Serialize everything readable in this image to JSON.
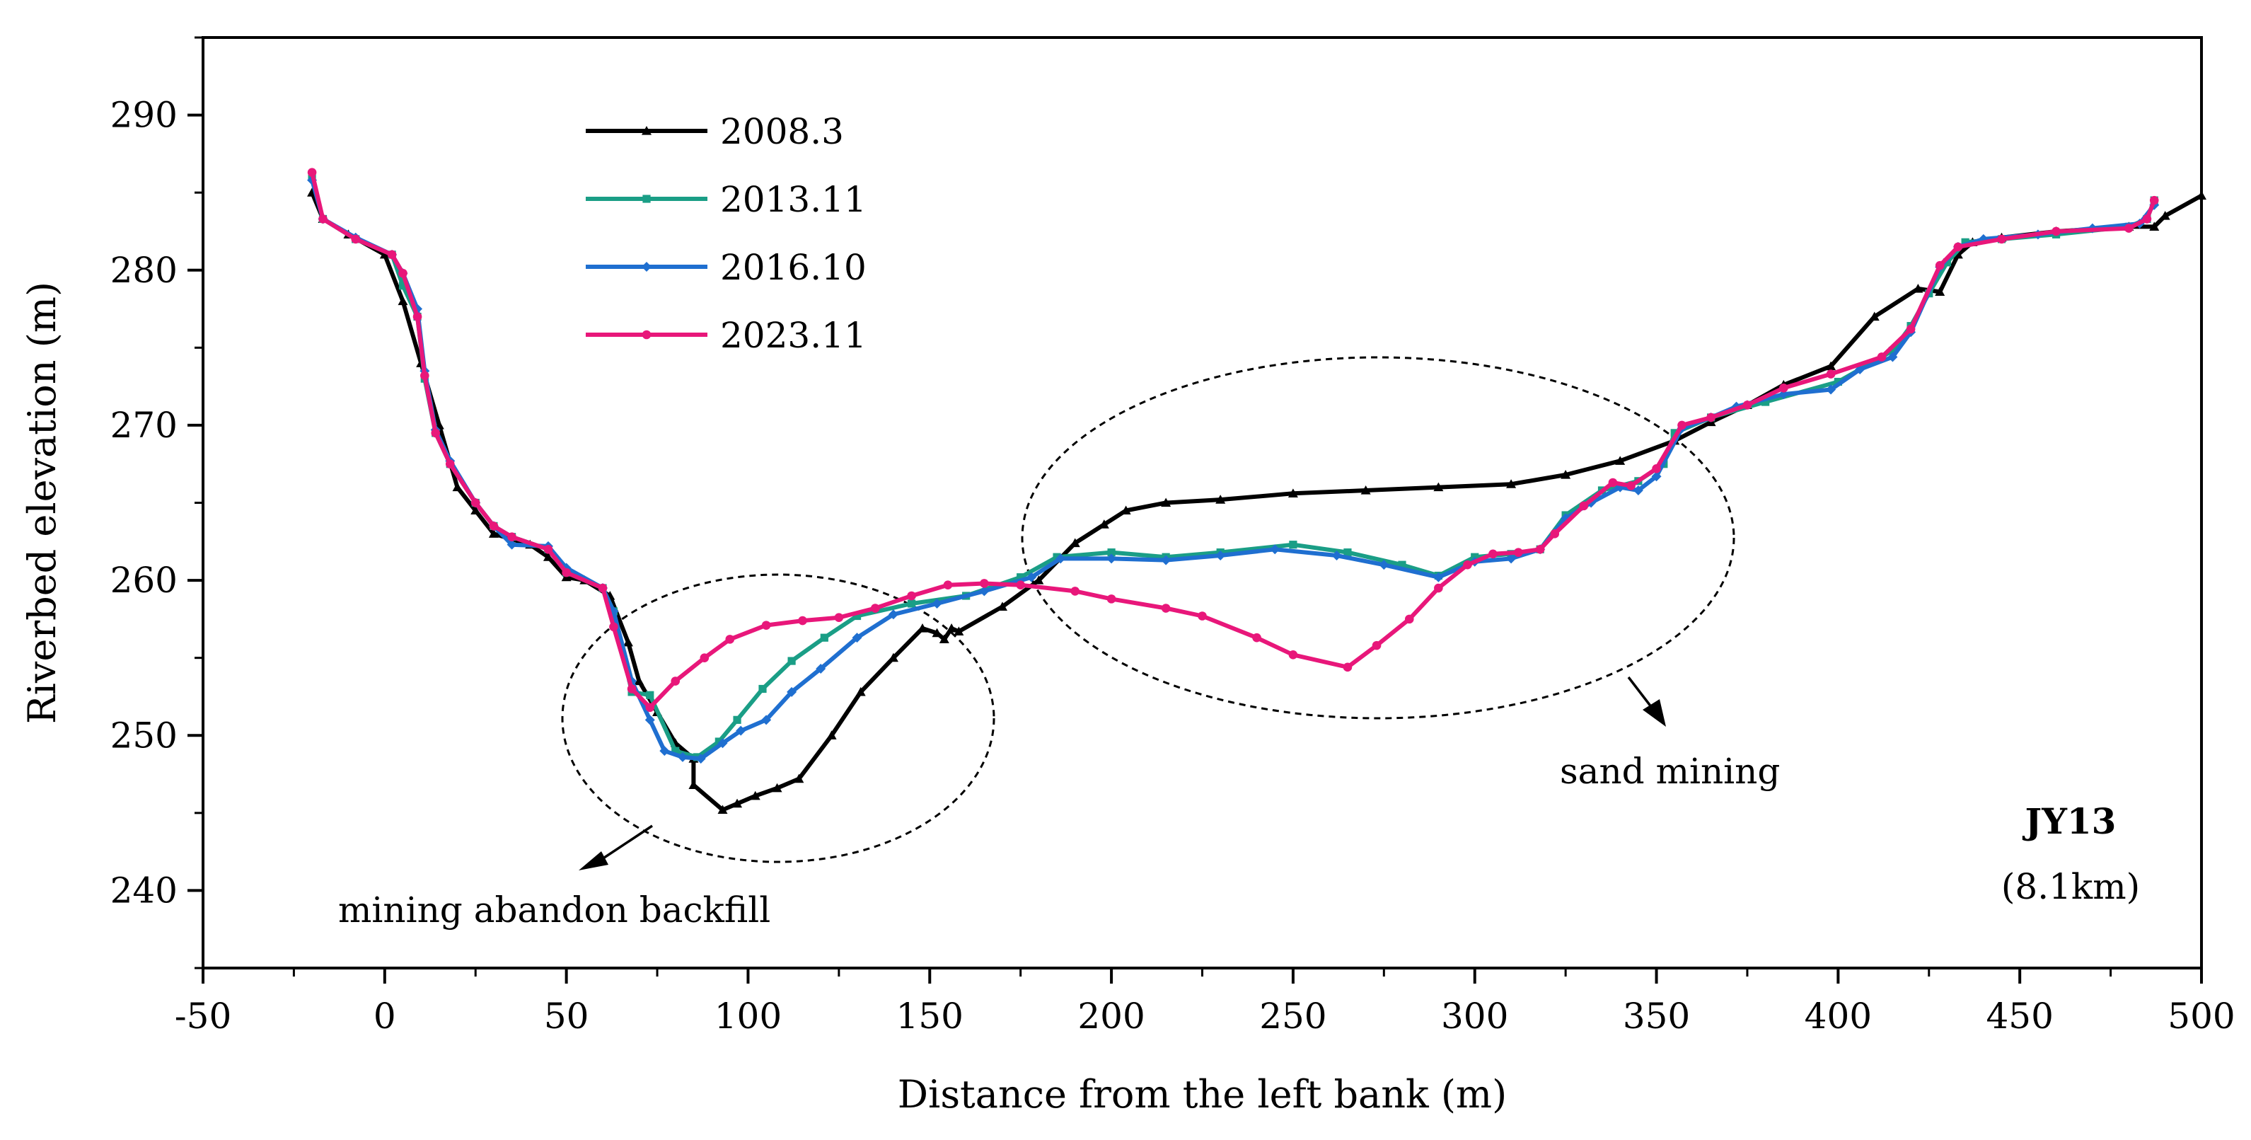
{
  "chart_data": {
    "type": "line",
    "title": "",
    "xlabel": "Distance from the left bank (m)",
    "ylabel": "Riverbed elevation (m)",
    "xlim": [
      -50,
      500
    ],
    "ylim": [
      235,
      295
    ],
    "xticks": [
      -50,
      0,
      50,
      100,
      150,
      200,
      250,
      300,
      350,
      400,
      450,
      500
    ],
    "yticks": [
      240,
      250,
      260,
      270,
      280,
      290
    ],
    "legend_position": "top-left",
    "series": [
      {
        "name": "2008.3",
        "color": "#000000",
        "marker": "triangle",
        "points": [
          [
            -20,
            285
          ],
          [
            -17,
            283.3
          ],
          [
            -10,
            282.3
          ],
          [
            0,
            281
          ],
          [
            5,
            278
          ],
          [
            10,
            274
          ],
          [
            15,
            270
          ],
          [
            20,
            266
          ],
          [
            25,
            264.5
          ],
          [
            30,
            263
          ],
          [
            40,
            262.3
          ],
          [
            45,
            261.5
          ],
          [
            50,
            260.2
          ],
          [
            55,
            260
          ],
          [
            62,
            259
          ],
          [
            67,
            256
          ],
          [
            70,
            253.5
          ],
          [
            75,
            251.5
          ],
          [
            80,
            249.5
          ],
          [
            85,
            248.5
          ],
          [
            85,
            246.8
          ],
          [
            93,
            245.2
          ],
          [
            97,
            245.6
          ],
          [
            102,
            246.1
          ],
          [
            108,
            246.6
          ],
          [
            114,
            247.2
          ],
          [
            123,
            250
          ],
          [
            131,
            252.8
          ],
          [
            140,
            255
          ],
          [
            148,
            256.9
          ],
          [
            152,
            256.6
          ],
          [
            154,
            256.2
          ],
          [
            156,
            256.9
          ],
          [
            158,
            256.7
          ],
          [
            170,
            258.3
          ],
          [
            180,
            260
          ],
          [
            190,
            262.4
          ],
          [
            198,
            263.6
          ],
          [
            204,
            264.5
          ],
          [
            215,
            265
          ],
          [
            230,
            265.2
          ],
          [
            250,
            265.6
          ],
          [
            270,
            265.8
          ],
          [
            290,
            266
          ],
          [
            310,
            266.2
          ],
          [
            325,
            266.8
          ],
          [
            340,
            267.7
          ],
          [
            355,
            269
          ],
          [
            365,
            270.2
          ],
          [
            375,
            271.3
          ],
          [
            385,
            272.6
          ],
          [
            398,
            273.8
          ],
          [
            410,
            277
          ],
          [
            422,
            278.8
          ],
          [
            428,
            278.6
          ],
          [
            433,
            281
          ],
          [
            437,
            281.8
          ],
          [
            445,
            282.1
          ],
          [
            460,
            282.5
          ],
          [
            480,
            282.8
          ],
          [
            487,
            282.8
          ],
          [
            490,
            283.5
          ],
          [
            500,
            284.8
          ]
        ]
      },
      {
        "name": "2013.11",
        "color": "#1a9e86",
        "marker": "square",
        "points": [
          [
            -20,
            286
          ],
          [
            -17,
            283.3
          ],
          [
            -8,
            282
          ],
          [
            2,
            281
          ],
          [
            5,
            279
          ],
          [
            9,
            277
          ],
          [
            11,
            273
          ],
          [
            14,
            269.5
          ],
          [
            18,
            267.5
          ],
          [
            25,
            265
          ],
          [
            30,
            263.5
          ],
          [
            35,
            262.8
          ],
          [
            45,
            262
          ],
          [
            50,
            260.5
          ],
          [
            60,
            259.5
          ],
          [
            63,
            258
          ],
          [
            68,
            252.8
          ],
          [
            73,
            252.6
          ],
          [
            80,
            249
          ],
          [
            86,
            248.6
          ],
          [
            92,
            249.6
          ],
          [
            97,
            251
          ],
          [
            104,
            253
          ],
          [
            112,
            254.8
          ],
          [
            121,
            256.3
          ],
          [
            130,
            257.7
          ],
          [
            145,
            258.5
          ],
          [
            160,
            259
          ],
          [
            175,
            260.2
          ],
          [
            185,
            261.5
          ],
          [
            200,
            261.8
          ],
          [
            215,
            261.5
          ],
          [
            230,
            261.8
          ],
          [
            250,
            262.3
          ],
          [
            265,
            261.8
          ],
          [
            280,
            261
          ],
          [
            290,
            260.3
          ],
          [
            300,
            261.5
          ],
          [
            310,
            261.7
          ],
          [
            318,
            262
          ],
          [
            325,
            264.2
          ],
          [
            335,
            265.8
          ],
          [
            345,
            266.4
          ],
          [
            352,
            267.5
          ],
          [
            355,
            269.5
          ],
          [
            365,
            270.5
          ],
          [
            380,
            271.5
          ],
          [
            400,
            272.8
          ],
          [
            415,
            274.8
          ],
          [
            420,
            276.4
          ],
          [
            425,
            278.5
          ],
          [
            430,
            280.5
          ],
          [
            435,
            281.8
          ],
          [
            445,
            282
          ],
          [
            460,
            282.3
          ],
          [
            480,
            282.8
          ],
          [
            485,
            283.3
          ],
          [
            487,
            284.5
          ]
        ]
      },
      {
        "name": "2016.10",
        "color": "#1f6fd0",
        "marker": "diamond",
        "points": [
          [
            -20,
            285.8
          ],
          [
            -17,
            283.3
          ],
          [
            -8,
            282.1
          ],
          [
            2,
            281
          ],
          [
            5,
            279.8
          ],
          [
            9,
            277.5
          ],
          [
            11,
            273.5
          ],
          [
            14,
            269.7
          ],
          [
            18,
            267.7
          ],
          [
            25,
            265
          ],
          [
            30,
            263.5
          ],
          [
            35,
            262.3
          ],
          [
            45,
            262.2
          ],
          [
            50,
            260.8
          ],
          [
            60,
            259.5
          ],
          [
            63,
            258
          ],
          [
            68,
            253.5
          ],
          [
            73,
            251
          ],
          [
            77,
            249
          ],
          [
            82,
            248.6
          ],
          [
            87,
            248.5
          ],
          [
            93,
            249.5
          ],
          [
            98,
            250.3
          ],
          [
            105,
            251
          ],
          [
            112,
            252.8
          ],
          [
            120,
            254.3
          ],
          [
            130,
            256.3
          ],
          [
            140,
            257.8
          ],
          [
            152,
            258.5
          ],
          [
            165,
            259.3
          ],
          [
            178,
            260.2
          ],
          [
            186,
            261.4
          ],
          [
            200,
            261.4
          ],
          [
            215,
            261.3
          ],
          [
            230,
            261.6
          ],
          [
            245,
            262
          ],
          [
            262,
            261.6
          ],
          [
            275,
            261
          ],
          [
            290,
            260.2
          ],
          [
            300,
            261.2
          ],
          [
            310,
            261.4
          ],
          [
            318,
            262
          ],
          [
            325,
            264
          ],
          [
            332,
            265
          ],
          [
            340,
            266
          ],
          [
            345,
            265.8
          ],
          [
            350,
            266.7
          ],
          [
            357,
            269.8
          ],
          [
            365,
            270.5
          ],
          [
            372,
            271.2
          ],
          [
            385,
            272
          ],
          [
            398,
            272.3
          ],
          [
            406,
            273.6
          ],
          [
            415,
            274.4
          ],
          [
            420,
            276
          ],
          [
            428,
            280.2
          ],
          [
            433,
            281.5
          ],
          [
            440,
            282
          ],
          [
            455,
            282.3
          ],
          [
            470,
            282.7
          ],
          [
            483,
            283
          ],
          [
            487,
            284.2
          ]
        ]
      },
      {
        "name": "2023.11",
        "color": "#e8177a",
        "marker": "circle",
        "points": [
          [
            -20,
            286.3
          ],
          [
            -17,
            283.3
          ],
          [
            -8,
            282
          ],
          [
            2,
            281
          ],
          [
            5,
            279.8
          ],
          [
            9,
            277
          ],
          [
            11,
            273.2
          ],
          [
            14,
            269.5
          ],
          [
            18,
            267.5
          ],
          [
            25,
            265
          ],
          [
            30,
            263.5
          ],
          [
            35,
            262.8
          ],
          [
            45,
            262
          ],
          [
            50,
            260.5
          ],
          [
            60,
            259.5
          ],
          [
            63,
            257
          ],
          [
            68,
            253
          ],
          [
            73,
            251.8
          ],
          [
            80,
            253.5
          ],
          [
            88,
            255
          ],
          [
            95,
            256.2
          ],
          [
            105,
            257.1
          ],
          [
            115,
            257.4
          ],
          [
            125,
            257.6
          ],
          [
            135,
            258.2
          ],
          [
            145,
            259
          ],
          [
            155,
            259.7
          ],
          [
            165,
            259.8
          ],
          [
            175,
            259.7
          ],
          [
            190,
            259.3
          ],
          [
            200,
            258.8
          ],
          [
            215,
            258.2
          ],
          [
            225,
            257.7
          ],
          [
            240,
            256.3
          ],
          [
            250,
            255.2
          ],
          [
            265,
            254.4
          ],
          [
            273,
            255.8
          ],
          [
            282,
            257.5
          ],
          [
            290,
            259.5
          ],
          [
            298,
            261
          ],
          [
            305,
            261.7
          ],
          [
            312,
            261.8
          ],
          [
            318,
            262
          ],
          [
            322,
            263
          ],
          [
            330,
            264.8
          ],
          [
            338,
            266.3
          ],
          [
            343,
            266.1
          ],
          [
            350,
            267.2
          ],
          [
            357,
            270
          ],
          [
            365,
            270.5
          ],
          [
            375,
            271.3
          ],
          [
            385,
            272.4
          ],
          [
            398,
            273.3
          ],
          [
            412,
            274.4
          ],
          [
            420,
            276.2
          ],
          [
            428,
            280.3
          ],
          [
            433,
            281.5
          ],
          [
            445,
            282
          ],
          [
            460,
            282.5
          ],
          [
            480,
            282.7
          ],
          [
            485,
            283.3
          ],
          [
            487,
            284.5
          ]
        ]
      }
    ],
    "annotations": {
      "backfill_label": "mining abandon backfill",
      "sand_label": "sand mining",
      "section_label": "JY13",
      "section_km": "(8.1km)"
    }
  }
}
